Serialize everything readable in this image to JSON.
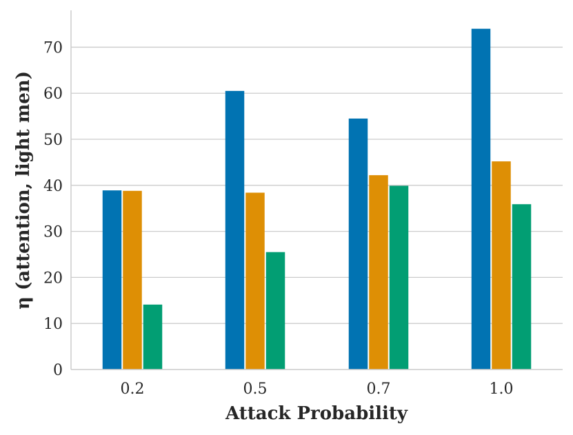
{
  "chart_data": {
    "type": "bar",
    "title": "",
    "xlabel": "Attack Probability",
    "ylabel": "η (attention, light men)",
    "categories": [
      "0.2",
      "0.5",
      "0.7",
      "1.0"
    ],
    "series": [
      {
        "color": "#0173b2",
        "values": [
          38.9,
          60.5,
          54.5,
          74.0
        ]
      },
      {
        "color": "#de8f05",
        "values": [
          38.8,
          38.4,
          42.2,
          45.2
        ]
      },
      {
        "color": "#029e73",
        "values": [
          14.1,
          25.5,
          39.9,
          35.9
        ]
      }
    ],
    "ylim": [
      0,
      78
    ],
    "yticks": [
      "0",
      "10",
      "20",
      "30",
      "40",
      "50",
      "60",
      "70"
    ],
    "grid": "horizontal",
    "legend": "none"
  }
}
